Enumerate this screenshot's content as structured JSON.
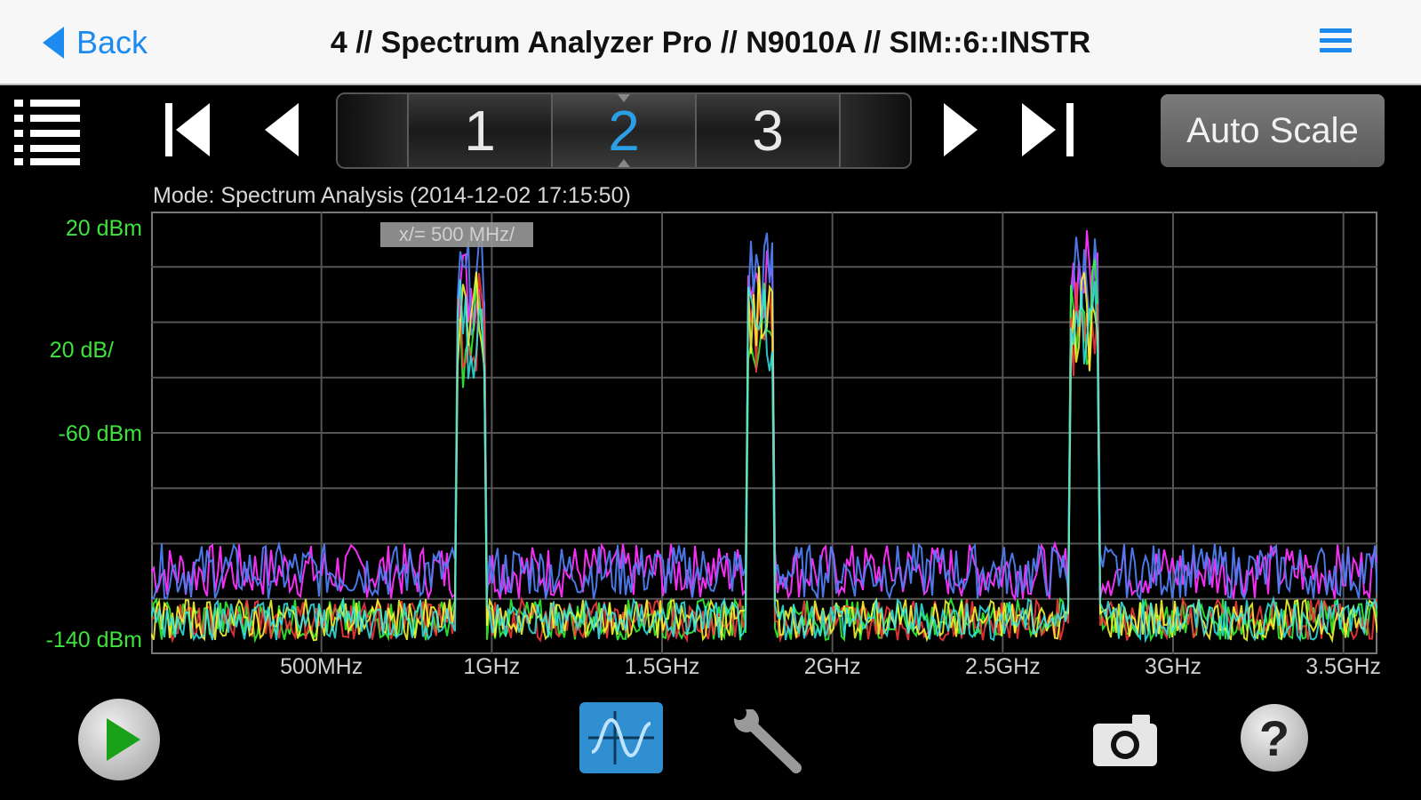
{
  "navbar": {
    "back_label": "Back",
    "title": "4 // Spectrum Analyzer Pro // N9010A // SIM::6::INSTR"
  },
  "toolbar": {
    "traces": [
      "1",
      "2",
      "3"
    ],
    "active_trace": "2",
    "auto_scale_label": "Auto Scale"
  },
  "chart": {
    "mode_text": "Mode: Spectrum Analysis (2014-12-02 17:15:50)",
    "x_div_badge": "x/= 500 MHz/",
    "y_labels": {
      "top": "20 dBm",
      "scale": "20 dB/",
      "mid": "-60 dBm",
      "bottom": "-140 dBm"
    }
  },
  "chart_data": {
    "type": "line",
    "x_unit": "GHz",
    "y_unit": "dBm",
    "xlim": [
      0.0,
      3.6
    ],
    "ylim": [
      -140,
      20
    ],
    "x_ticks": [
      0.5,
      1.0,
      1.5,
      2.0,
      2.5,
      3.0,
      3.5
    ],
    "x_tick_labels": [
      "500MHz",
      "1GHz",
      "1.5GHz",
      "2GHz",
      "2.5GHz",
      "3GHz",
      "3.5GHz"
    ],
    "grid": true,
    "noise_floor_high": [
      -100,
      -120
    ],
    "noise_floor_low": [
      -120,
      -135
    ],
    "carriers": [
      {
        "start_ghz": 0.9,
        "end_ghz": 0.98,
        "peak_dbm": 10
      },
      {
        "start_ghz": 1.75,
        "end_ghz": 1.83,
        "peak_dbm": 15
      },
      {
        "start_ghz": 2.7,
        "end_ghz": 2.78,
        "peak_dbm": 15
      }
    ],
    "series_colors": [
      "#ff33ff",
      "#4f7df0",
      "#35ff35",
      "#ff3b3b",
      "#ffff33",
      "#33e6e6"
    ]
  },
  "icons": {
    "back": "chevron-left-icon",
    "menu": "hamburger-icon",
    "list": "list-icon",
    "first": "skip-first-icon",
    "prev": "prev-icon",
    "next": "next-icon",
    "last": "skip-last-icon",
    "play": "play-icon",
    "mode": "waveform-icon",
    "settings": "wrench-icon",
    "screenshot": "camera-icon",
    "help": "help-icon"
  },
  "colors": {
    "accent": "#1d8af0",
    "label_green": "#3ee23e",
    "mode_button": "#2f8fd0"
  }
}
